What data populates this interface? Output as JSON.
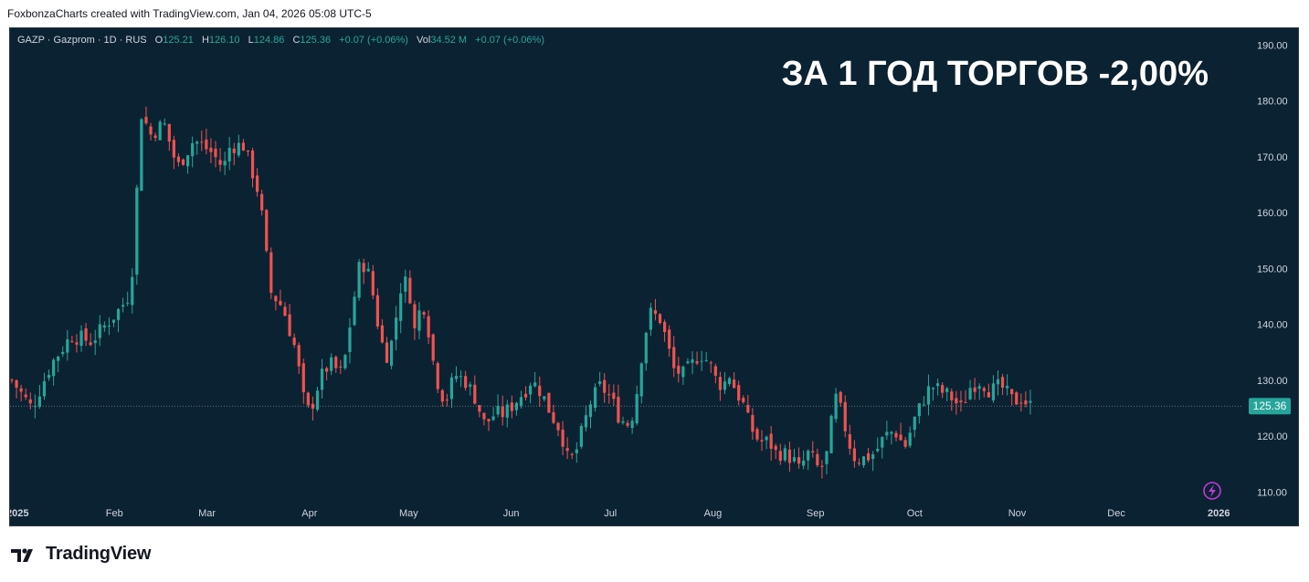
{
  "header": {
    "credit": "FoxbonzaCharts created with TradingView.com, Jan 04, 2026 05:08 UTC-5"
  },
  "legend": {
    "symbol": "GAZP · Gazprom · 1D · RUS",
    "o_label": "O",
    "o_value": "125.21",
    "h_label": "H",
    "h_value": "126.10",
    "l_label": "L",
    "l_value": "124.86",
    "c_label": "C",
    "c_value": "125.36",
    "change": "+0.07 (+0.06%)",
    "vol_label": "Vol",
    "vol_value": "34.52 M",
    "vol_change": "+0.07 (+0.06%)"
  },
  "annotation": "ЗА 1 ГОД ТОРГОВ -2,00%",
  "brand": {
    "name": "TradingView"
  },
  "colors": {
    "background": "#0b2233",
    "up": "#26a69a",
    "down": "#ef5350",
    "text": "#d1d4dc",
    "price_tag": "#26a69a",
    "lightning": "#c23bd4"
  },
  "chart_data": {
    "type": "candlestick",
    "ylim": [
      104,
      193
    ],
    "y_ticks": [
      "190.00",
      "180.00",
      "170.00",
      "160.00",
      "150.00",
      "140.00",
      "130.00",
      "120.00",
      "110.00"
    ],
    "x_ticks": [
      "2025",
      "Feb",
      "Mar",
      "Apr",
      "May",
      "Jun",
      "Jul",
      "Aug",
      "Sep",
      "Oct",
      "Nov",
      "Dec",
      "2026"
    ],
    "x_tick_days": [
      0,
      31,
      59,
      90,
      120,
      151,
      181,
      212,
      243,
      273,
      304,
      334,
      365
    ],
    "last_price": 125.36,
    "last_price_label": "125.36",
    "series_keyframes": [
      [
        0,
        130
      ],
      [
        6,
        125
      ],
      [
        12,
        133
      ],
      [
        18,
        138
      ],
      [
        24,
        137
      ],
      [
        30,
        141
      ],
      [
        33,
        143
      ],
      [
        35,
        145
      ],
      [
        37,
        152
      ],
      [
        38,
        167
      ],
      [
        39,
        178
      ],
      [
        42,
        174
      ],
      [
        46,
        176
      ],
      [
        50,
        168
      ],
      [
        55,
        173
      ],
      [
        60,
        171
      ],
      [
        64,
        168
      ],
      [
        66,
        172
      ],
      [
        70,
        172
      ],
      [
        74,
        165
      ],
      [
        76,
        158
      ],
      [
        78,
        146
      ],
      [
        82,
        143
      ],
      [
        86,
        135
      ],
      [
        88,
        127
      ],
      [
        90,
        124
      ],
      [
        93,
        130
      ],
      [
        96,
        133
      ],
      [
        100,
        131
      ],
      [
        103,
        143
      ],
      [
        105,
        150
      ],
      [
        107,
        151
      ],
      [
        109,
        146
      ],
      [
        111,
        139
      ],
      [
        113,
        134
      ],
      [
        115,
        137
      ],
      [
        118,
        148
      ],
      [
        120,
        147
      ],
      [
        122,
        138
      ],
      [
        124,
        145
      ],
      [
        126,
        139
      ],
      [
        128,
        131
      ],
      [
        131,
        126
      ],
      [
        134,
        131
      ],
      [
        137,
        130
      ],
      [
        140,
        127
      ],
      [
        143,
        122
      ],
      [
        146,
        124
      ],
      [
        149,
        124
      ],
      [
        152,
        126
      ],
      [
        155,
        128
      ],
      [
        157,
        130
      ],
      [
        160,
        128
      ],
      [
        163,
        124
      ],
      [
        166,
        121
      ],
      [
        168,
        116
      ],
      [
        170,
        116
      ],
      [
        172,
        120
      ],
      [
        175,
        126
      ],
      [
        178,
        129
      ],
      [
        181,
        127
      ],
      [
        184,
        123
      ],
      [
        187,
        122
      ],
      [
        189,
        128
      ],
      [
        191,
        137
      ],
      [
        193,
        142
      ],
      [
        196,
        141
      ],
      [
        198,
        137
      ],
      [
        200,
        132
      ],
      [
        203,
        131
      ],
      [
        206,
        133
      ],
      [
        208,
        135
      ],
      [
        211,
        133
      ],
      [
        213,
        130
      ],
      [
        215,
        129
      ],
      [
        217,
        131
      ],
      [
        219,
        128
      ],
      [
        221,
        126
      ],
      [
        223,
        122
      ],
      [
        226,
        119
      ],
      [
        229,
        119
      ],
      [
        231,
        117
      ],
      [
        233,
        117
      ],
      [
        236,
        116
      ],
      [
        238,
        114
      ],
      [
        241,
        117
      ],
      [
        244,
        114
      ],
      [
        246,
        115
      ],
      [
        249,
        127
      ],
      [
        251,
        124
      ],
      [
        253,
        119
      ],
      [
        255,
        116
      ],
      [
        258,
        116
      ],
      [
        261,
        117
      ],
      [
        264,
        120
      ],
      [
        267,
        121
      ],
      [
        270,
        118
      ],
      [
        273,
        123
      ],
      [
        276,
        127
      ],
      [
        278,
        129
      ],
      [
        281,
        128
      ],
      [
        284,
        127
      ],
      [
        287,
        125
      ],
      [
        290,
        129
      ],
      [
        293,
        130
      ],
      [
        296,
        128
      ],
      [
        299,
        129
      ],
      [
        303,
        126
      ],
      [
        305,
        127
      ],
      [
        308,
        125.36
      ]
    ]
  }
}
